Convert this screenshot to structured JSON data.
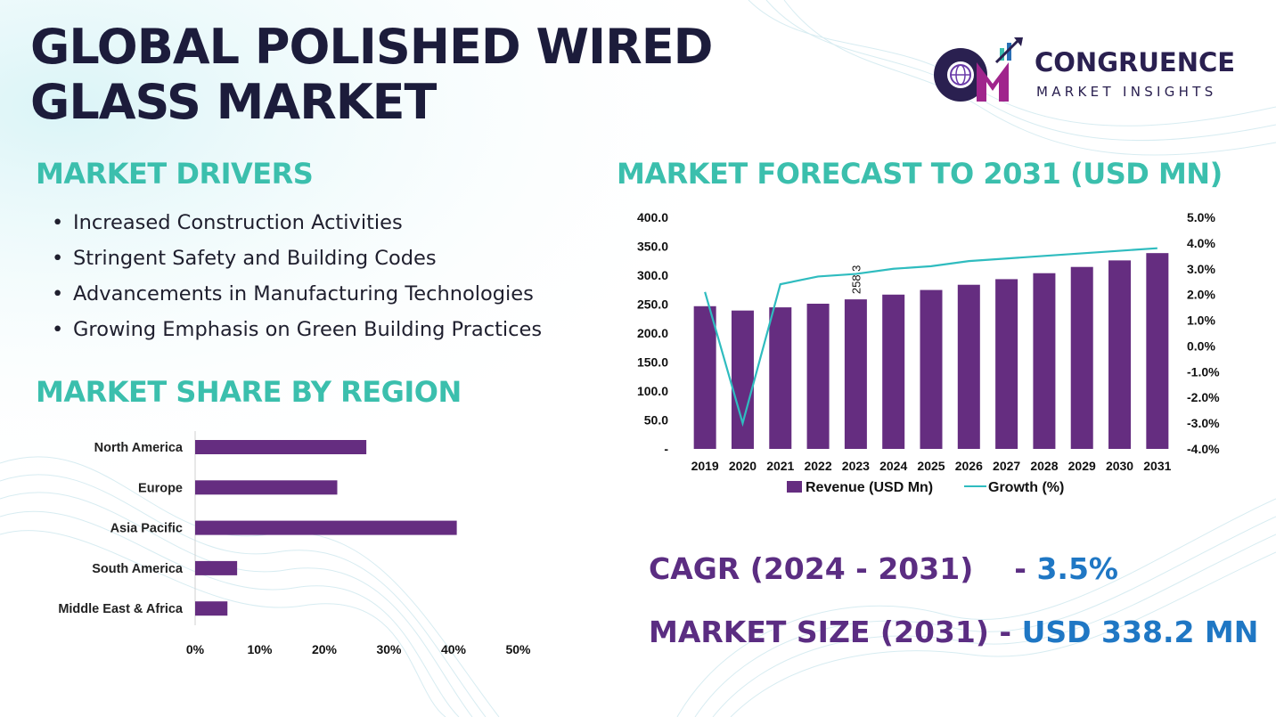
{
  "title_line1": "GLOBAL POLISHED WIRED",
  "title_line2": "GLASS MARKET",
  "logo": {
    "name": "CONGRUENCE",
    "tagline": "MARKET INSIGHTS",
    "mark": "CM"
  },
  "drivers": {
    "heading": "MARKET DRIVERS",
    "bullet": "•",
    "items": [
      "Increased Construction Activities",
      "Stringent Safety and Building Codes",
      "Advancements in Manufacturing Technologies",
      "Growing Emphasis on Green Building Practices"
    ]
  },
  "share": {
    "heading": "MARKET SHARE BY REGION"
  },
  "forecast": {
    "heading": "MARKET FORECAST TO 2031 (USD MN)"
  },
  "kpis": {
    "cagr_label": "CAGR (2024 - 2031)",
    "cagr_sep": "- ",
    "cagr_value": "3.5%",
    "size_label": "MARKET SIZE (2031)",
    "size_sep": " - ",
    "size_value": "USD 338.2 MN"
  },
  "colors": {
    "bar": "#652d80",
    "line": "#2fbcbf",
    "accent": "#3bbfad",
    "title": "#1c1c3b",
    "kpi_value": "#1f77c4"
  },
  "chart_data": [
    {
      "type": "bar",
      "orientation": "horizontal",
      "categories": [
        "North America",
        "Europe",
        "Asia Pacific",
        "South America",
        "Middle East & Africa"
      ],
      "values": [
        26.5,
        22,
        40.5,
        6.5,
        5
      ],
      "unit": "%",
      "xlim": [
        0,
        50
      ],
      "xticks": [
        0,
        10,
        20,
        30,
        40,
        50
      ],
      "xtick_labels": [
        "0%",
        "10%",
        "20%",
        "30%",
        "40%",
        "50%"
      ],
      "grid": false,
      "color": "#652d80"
    },
    {
      "type": "bar",
      "categories": [
        "2019",
        "2020",
        "2021",
        "2022",
        "2023",
        "2024",
        "2025",
        "2026",
        "2027",
        "2028",
        "2029",
        "2030",
        "2031"
      ],
      "series": [
        {
          "name": "Revenue (USD Mn)",
          "type": "bar",
          "axis": "left",
          "color": "#652d80",
          "values": [
            246.5,
            239,
            244.5,
            250.8,
            258.3,
            266.5,
            274.5,
            283.5,
            293.2,
            303.5,
            314.3,
            325.6,
            338.2
          ]
        },
        {
          "name": "Growth (%)",
          "type": "line",
          "axis": "right",
          "color": "#2fbcbf",
          "values": [
            2.1,
            -3.0,
            2.4,
            2.7,
            2.8,
            3.0,
            3.1,
            3.3,
            3.4,
            3.5,
            3.6,
            3.7,
            3.8
          ]
        }
      ],
      "data_labels": [
        {
          "category": "2023",
          "text": "258.3"
        }
      ],
      "ylim_left": [
        0,
        400
      ],
      "yticks_left": [
        "-",
        "50.0",
        "100.0",
        "150.0",
        "200.0",
        "250.0",
        "300.0",
        "350.0",
        "400.0"
      ],
      "ylim_right": [
        -4,
        5
      ],
      "yticks_right": [
        "-4.0%",
        "-3.0%",
        "-2.0%",
        "-1.0%",
        "0.0%",
        "1.0%",
        "2.0%",
        "3.0%",
        "4.0%",
        "5.0%"
      ],
      "legend": "bottom",
      "grid": false
    }
  ]
}
